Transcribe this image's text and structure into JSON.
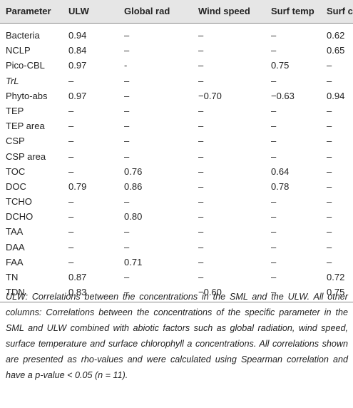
{
  "table": {
    "header": [
      "Parameter",
      "ULW",
      "Global rad",
      "Wind speed",
      "Surf temp",
      [
        "Surf chl ",
        "a"
      ]
    ],
    "rows": [
      {
        "label": "Bacteria",
        "cells": [
          "0.94",
          "–",
          "–",
          "–",
          "0.62"
        ]
      },
      {
        "label": "NCLP",
        "cells": [
          "0.84",
          "–",
          "–",
          "–",
          "0.65"
        ]
      },
      {
        "label": "Pico-CBL",
        "cells": [
          "0.97",
          "-",
          "–",
          "0.75",
          "–"
        ]
      },
      {
        "label": "TrL",
        "italic": true,
        "cells": [
          "–",
          "–",
          "–",
          "–",
          "–"
        ]
      },
      {
        "label": "Phyto-abs",
        "cells": [
          "0.97",
          "–",
          "−0.70",
          "−0.63",
          "0.94"
        ]
      },
      {
        "label": "TEP",
        "cells": [
          "–",
          "–",
          "–",
          "–",
          "–"
        ]
      },
      {
        "label": "TEP area",
        "cells": [
          "–",
          "–",
          "–",
          "–",
          "–"
        ]
      },
      {
        "label": "CSP",
        "cells": [
          "–",
          "–",
          "–",
          "–",
          "–"
        ]
      },
      {
        "label": "CSP area",
        "cells": [
          "–",
          "–",
          "–",
          "–",
          "–"
        ]
      },
      {
        "label": "TOC",
        "cells": [
          "–",
          "0.76",
          "–",
          "0.64",
          "–"
        ]
      },
      {
        "label": "DOC",
        "cells": [
          "0.79",
          "0.86",
          "–",
          "0.78",
          "–"
        ]
      },
      {
        "label": "TCHO",
        "cells": [
          "–",
          "–",
          "–",
          "–",
          "–"
        ]
      },
      {
        "label": "DCHO",
        "cells": [
          "–",
          "0.80",
          "–",
          "–",
          "–"
        ]
      },
      {
        "label": "TAA",
        "cells": [
          "–",
          "–",
          "–",
          "–",
          "–"
        ]
      },
      {
        "label": "DAA",
        "cells": [
          "–",
          "–",
          "–",
          "–",
          "–"
        ]
      },
      {
        "label": "FAA",
        "cells": [
          "–",
          "0.71",
          "–",
          "–",
          "–"
        ]
      },
      {
        "label": "TN",
        "cells": [
          "0.87",
          "–",
          "–",
          "–",
          "0.72"
        ]
      },
      {
        "label": "TDN",
        "cells": [
          "0.83",
          "–",
          "−0.60",
          "–",
          "0.75"
        ]
      }
    ]
  },
  "caption": "ULW: Correlations between the concentrations in the SML and the ULW. All other columns: Correlations between the concentrations of the specific parameter in the SML and ULW combined with abiotic factors such as global radiation, wind speed, surface temperature and surface chlorophyll a concentrations. All correlations shown are presented as rho-values and were calculated using Spearman correlation and have a p-value < 0.05 (n = 11)."
}
